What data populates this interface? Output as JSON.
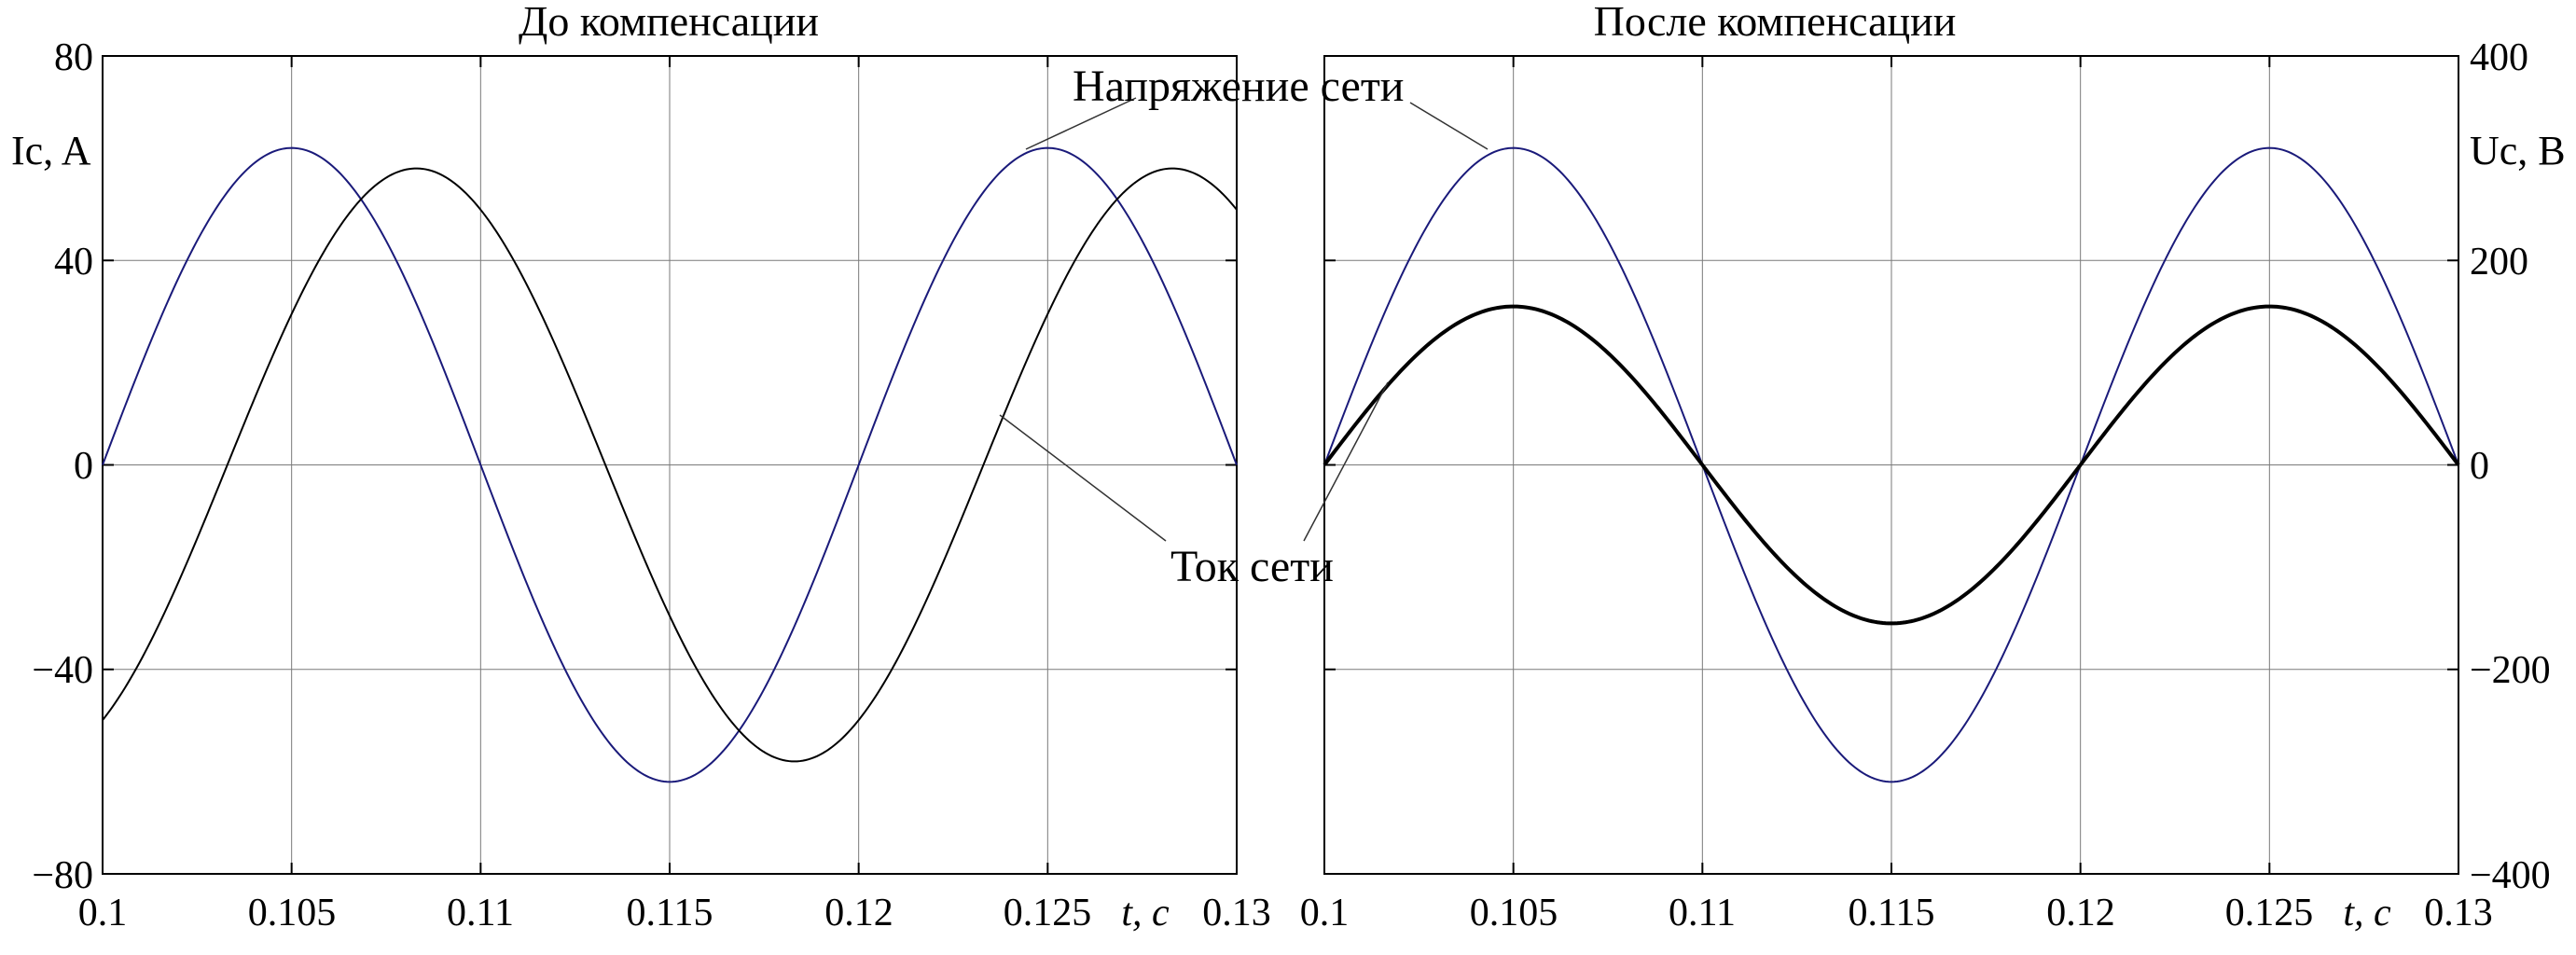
{
  "colors": {
    "voltage": "#1a1a7a",
    "current": "#000000",
    "grid": "#7a7a7a",
    "axis": "#000000"
  },
  "annotations": {
    "voltage_label": "Напряжение сети",
    "current_label": "Ток сети"
  },
  "chart_data": [
    {
      "type": "line",
      "title": "До компенсации",
      "xlabel": "t, с",
      "ylabel": "Ic, A",
      "xlim": [
        0.1,
        0.13
      ],
      "ylim": [
        -80,
        80
      ],
      "x_ticks": [
        "0.1",
        "0.105",
        "0.11",
        "0.115",
        "0.12",
        "0.125",
        "0.13"
      ],
      "y_ticks_left": [
        "80",
        "40",
        "0",
        "−40",
        "−80"
      ],
      "grid": true,
      "series": [
        {
          "name": "Напряжение сети",
          "color": "#1a1a7a",
          "amplitude": 62,
          "phase_lag_s": 0
        },
        {
          "name": "Ток сети",
          "color": "#000000",
          "amplitude": 58,
          "phase_lag_s": 0.0033
        }
      ]
    },
    {
      "type": "line",
      "title": "После компенсации",
      "xlabel": "t, с",
      "ylabel": "Uc, B",
      "xlim": [
        0.1,
        0.13
      ],
      "ylim": [
        -400,
        400
      ],
      "x_ticks": [
        "0.1",
        "0.105",
        "0.11",
        "0.115",
        "0.12",
        "0.125",
        "0.13"
      ],
      "y_ticks_right": [
        "400",
        "200",
        "0",
        "−200",
        "−400"
      ],
      "grid": true,
      "series": [
        {
          "name": "Напряжение сети",
          "color": "#1a1a7a",
          "amplitude": 310,
          "phase_lag_s": 0
        },
        {
          "name": "Ток сети",
          "color": "#000000",
          "amplitude": 155,
          "phase_lag_s": 0
        }
      ]
    }
  ]
}
